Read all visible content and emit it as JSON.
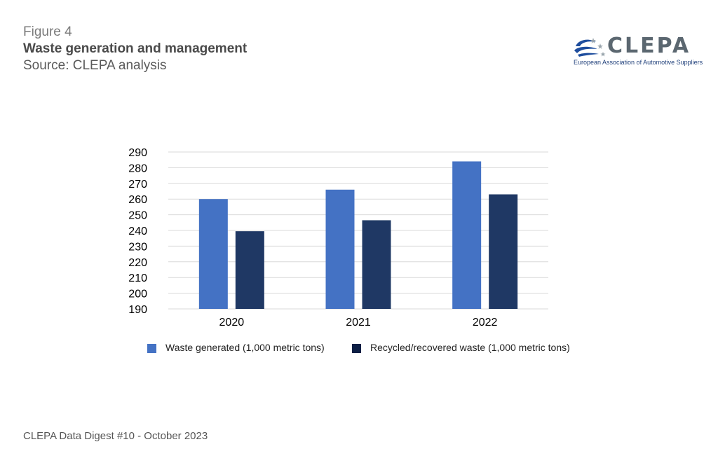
{
  "header": {
    "figure_label": "Figure 4",
    "title": "Waste generation and management",
    "source": "Source: CLEPA analysis"
  },
  "logo": {
    "word": "CLEPA",
    "subtitle": "European Association of Automotive Suppliers",
    "icon": "clepa-swoosh-stars-icon",
    "colors": {
      "blue": "#1f4e9e",
      "grey": "#5b6770"
    }
  },
  "chart_data": {
    "type": "bar",
    "categories": [
      "2020",
      "2021",
      "2022"
    ],
    "series": [
      {
        "name": "Waste generated (1,000 metric tons)",
        "values": [
          260,
          266,
          284
        ],
        "color": "#4472c4"
      },
      {
        "name": "Recycled/recovered waste (1,000 metric tons)",
        "values": [
          239.5,
          246.5,
          263
        ],
        "color": "#1f3864"
      }
    ],
    "y_ticks": [
      "190",
      "200",
      "210",
      "220",
      "230",
      "240",
      "250",
      "260",
      "270",
      "280",
      "290"
    ],
    "ylim": [
      190,
      290
    ],
    "grid": true,
    "legend_position": "bottom"
  },
  "footer": {
    "text": "CLEPA Data Digest #10 - October 2023"
  }
}
